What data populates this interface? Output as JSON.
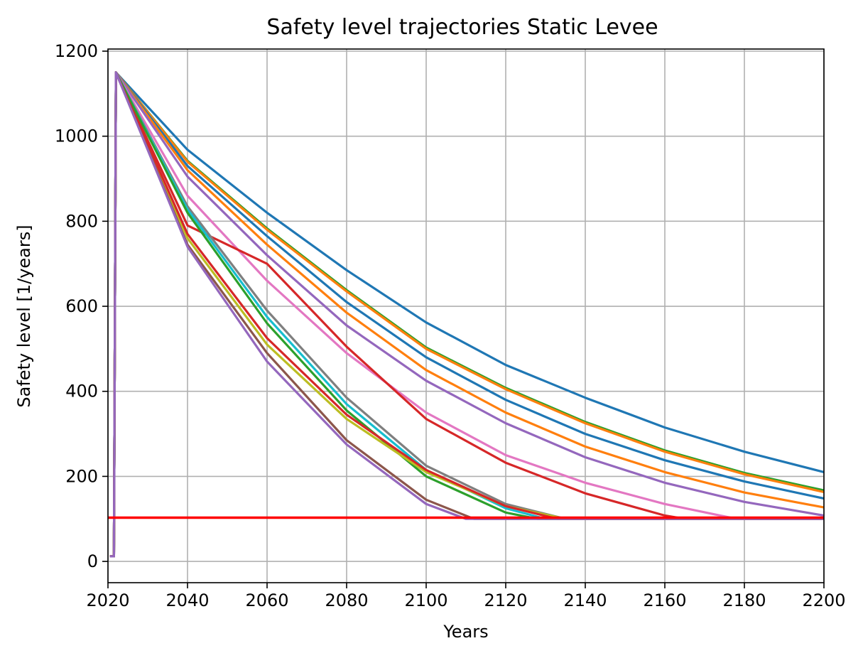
{
  "chart_data": {
    "type": "line",
    "title": "Safety level trajectories Static Levee",
    "xlabel": "Years",
    "ylabel": "Safety level [1/years]",
    "xlim": [
      2020,
      2200
    ],
    "ylim": [
      -50,
      1205
    ],
    "xticks": [
      2020,
      2040,
      2060,
      2080,
      2100,
      2120,
      2140,
      2160,
      2180,
      2200
    ],
    "yticks": [
      0,
      200,
      400,
      600,
      800,
      1000,
      1200
    ],
    "grid": true,
    "threshold": {
      "value": 103,
      "color": "#ff0000"
    },
    "series": [
      {
        "name": "blue-1",
        "color": "#1f77b4",
        "x": [
          2021,
          2021.5,
          2022,
          2040,
          2060,
          2080,
          2100,
          2120,
          2140,
          2160,
          2180,
          2200
        ],
        "y": [
          12,
          12,
          1150,
          968,
          820,
          685,
          562,
          462,
          385,
          315,
          258,
          210
        ]
      },
      {
        "name": "green-1",
        "color": "#2ca02c",
        "x": [
          2021,
          2021.5,
          2022,
          2040,
          2060,
          2080,
          2100,
          2120,
          2140,
          2160,
          2180,
          2200
        ],
        "y": [
          12,
          12,
          1150,
          942,
          783,
          638,
          503,
          408,
          328,
          261,
          208,
          167
        ]
      },
      {
        "name": "orange-1",
        "color": "#ff7f0e",
        "x": [
          2021,
          2021.5,
          2022,
          2040,
          2060,
          2080,
          2100,
          2120,
          2140,
          2160,
          2180,
          2200
        ],
        "y": [
          12,
          12,
          1150,
          940,
          780,
          635,
          500,
          405,
          325,
          258,
          205,
          163
        ]
      },
      {
        "name": "blue-2",
        "color": "#1f77b4",
        "x": [
          2021,
          2021.5,
          2022,
          2040,
          2060,
          2080,
          2100,
          2120,
          2140,
          2160,
          2180,
          2200
        ],
        "y": [
          12,
          12,
          1150,
          930,
          765,
          610,
          480,
          380,
          300,
          238,
          188,
          148
        ]
      },
      {
        "name": "orange-2",
        "color": "#ff7f0e",
        "x": [
          2021,
          2021.5,
          2022,
          2040,
          2060,
          2080,
          2100,
          2120,
          2140,
          2160,
          2180,
          2200
        ],
        "y": [
          12,
          12,
          1150,
          920,
          745,
          585,
          450,
          350,
          270,
          210,
          162,
          127
        ]
      },
      {
        "name": "purple-1",
        "color": "#9467bd",
        "x": [
          2021,
          2021.5,
          2022,
          2040,
          2060,
          2080,
          2100,
          2120,
          2140,
          2160,
          2180,
          2200
        ],
        "y": [
          12,
          12,
          1150,
          905,
          720,
          555,
          425,
          325,
          245,
          185,
          140,
          108
        ]
      },
      {
        "name": "pink",
        "color": "#e377c2",
        "x": [
          2021,
          2021.5,
          2022,
          2040,
          2060,
          2080,
          2100,
          2120,
          2140,
          2160,
          2178,
          2200
        ],
        "y": [
          12,
          12,
          1150,
          860,
          660,
          490,
          350,
          250,
          185,
          135,
          100,
          100
        ]
      },
      {
        "name": "red-1",
        "color": "#d62728",
        "x": [
          2021,
          2021.5,
          2022,
          2040,
          2060,
          2080,
          2100,
          2120,
          2140,
          2160,
          2165,
          2200
        ],
        "y": [
          12,
          12,
          1150,
          790,
          700,
          505,
          335,
          232,
          160,
          108,
          100,
          100
        ]
      },
      {
        "name": "gray",
        "color": "#7f7f7f",
        "x": [
          2021,
          2021.5,
          2022,
          2040,
          2060,
          2080,
          2100,
          2120,
          2135,
          2200
        ],
        "y": [
          12,
          12,
          1150,
          835,
          590,
          385,
          225,
          135,
          100,
          100
        ]
      },
      {
        "name": "cyan",
        "color": "#17becf",
        "x": [
          2021,
          2021.5,
          2022,
          2040,
          2060,
          2080,
          2100,
          2120,
          2130,
          2200
        ],
        "y": [
          12,
          12,
          1150,
          828,
          575,
          370,
          215,
          125,
          100,
          100
        ]
      },
      {
        "name": "green-2",
        "color": "#2ca02c",
        "x": [
          2021,
          2021.5,
          2022,
          2040,
          2060,
          2080,
          2100,
          2120,
          2128,
          2200
        ],
        "y": [
          12,
          12,
          1150,
          820,
          560,
          355,
          200,
          115,
          100,
          100
        ]
      },
      {
        "name": "olive",
        "color": "#bcbd22",
        "x": [
          2021,
          2021.5,
          2022,
          2040,
          2060,
          2080,
          2100,
          2120,
          2135,
          2200
        ],
        "y": [
          12,
          12,
          1150,
          760,
          510,
          335,
          210,
          130,
          100,
          100
        ]
      },
      {
        "name": "red-2",
        "color": "#d62728",
        "x": [
          2021,
          2021.5,
          2022,
          2040,
          2060,
          2080,
          2100,
          2120,
          2133,
          2200
        ],
        "y": [
          12,
          12,
          1150,
          770,
          525,
          345,
          215,
          130,
          100,
          100
        ]
      },
      {
        "name": "brown",
        "color": "#8c564b",
        "x": [
          2021,
          2021.5,
          2022,
          2040,
          2060,
          2080,
          2100,
          2112,
          2200
        ],
        "y": [
          12,
          12,
          1150,
          745,
          490,
          285,
          145,
          100,
          100
        ]
      },
      {
        "name": "purple-2",
        "color": "#9467bd",
        "x": [
          2021,
          2021.5,
          2022,
          2040,
          2060,
          2080,
          2100,
          2110,
          2200
        ],
        "y": [
          12,
          12,
          1150,
          740,
          470,
          275,
          135,
          100,
          100
        ]
      }
    ]
  }
}
